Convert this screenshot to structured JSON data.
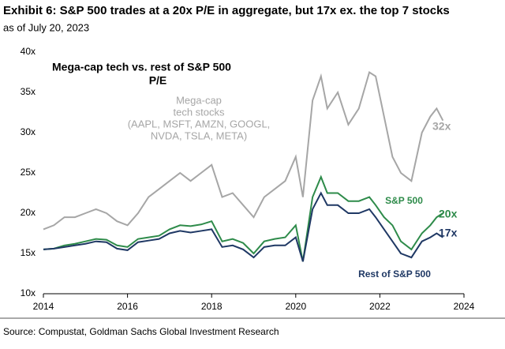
{
  "chart_data": {
    "type": "line",
    "title": "Exhibit 6: S&P 500 trades at a 20x P/E in aggregate, but 17x ex. the top 7 stocks",
    "subtitle": "as of July 20, 2023",
    "inset_title": [
      "Mega-cap tech vs. rest of S&P 500",
      "P/E"
    ],
    "source": "Source: Compustat, Goldman Sachs Global Investment Research",
    "x": [
      2014,
      2014.25,
      2014.5,
      2014.75,
      2015,
      2015.25,
      2015.5,
      2015.75,
      2016,
      2016.25,
      2016.5,
      2016.75,
      2017,
      2017.25,
      2017.5,
      2017.75,
      2018,
      2018.25,
      2018.5,
      2018.75,
      2019,
      2019.25,
      2019.5,
      2019.75,
      2020,
      2020.17,
      2020.4,
      2020.6,
      2020.75,
      2021,
      2021.25,
      2021.5,
      2021.75,
      2021.9,
      2022.1,
      2022.3,
      2022.5,
      2022.75,
      2023,
      2023.2,
      2023.35,
      2023.5
    ],
    "series": [
      {
        "name": [
          "Mega-cap",
          "tech stocks",
          "(AAPL, MSFT, AMZN, GOOGL,",
          "NVDA, TSLA, META)"
        ],
        "color": "#a6a6a6",
        "end_label": "32x",
        "values": [
          18,
          18.5,
          19.5,
          19.5,
          20,
          20.5,
          20,
          19,
          18.5,
          20,
          22,
          23,
          24,
          25,
          24,
          25,
          26,
          22,
          22.5,
          21,
          19.5,
          22,
          23,
          24,
          27,
          22,
          34,
          37,
          33,
          35,
          31,
          33,
          37.5,
          37,
          32,
          27,
          25,
          24,
          30,
          32,
          33,
          31.5
        ]
      },
      {
        "name": [
          "S&P 500"
        ],
        "color": "#2e8b4a",
        "end_label": "20x",
        "values": [
          15.5,
          15.6,
          16,
          16.2,
          16.5,
          16.8,
          16.7,
          16,
          15.8,
          16.8,
          17,
          17.2,
          18,
          18.5,
          18.4,
          18.6,
          19,
          16.5,
          16.8,
          16.3,
          15,
          16.5,
          16.8,
          17,
          18.5,
          14,
          22,
          24.5,
          22.5,
          22.5,
          21.5,
          21.5,
          22,
          21,
          19.5,
          18.5,
          16.5,
          15.5,
          17.5,
          18.5,
          19.5,
          20
        ]
      },
      {
        "name": [
          "Rest of S&P 500"
        ],
        "color": "#1f3864",
        "end_label": "17x",
        "values": [
          15.5,
          15.6,
          15.8,
          16,
          16.2,
          16.5,
          16.4,
          15.6,
          15.4,
          16.4,
          16.6,
          16.8,
          17.5,
          17.8,
          17.6,
          17.8,
          18,
          15.8,
          16,
          15.5,
          14.5,
          15.8,
          16,
          16,
          17,
          14,
          20.5,
          22.5,
          21,
          21,
          20,
          20,
          20.5,
          19.5,
          18,
          16.5,
          15,
          14.5,
          16.5,
          17,
          17.5,
          17
        ]
      }
    ],
    "xlim": [
      2014,
      2024
    ],
    "xticks": [
      2014,
      2016,
      2018,
      2020,
      2022,
      2024
    ],
    "ylim": [
      10,
      40
    ],
    "yticks": [
      {
        "value": 10,
        "label": "10x"
      },
      {
        "value": 15,
        "label": "15x"
      },
      {
        "value": 20,
        "label": "20x"
      },
      {
        "value": 25,
        "label": "25x"
      },
      {
        "value": 30,
        "label": "30x"
      },
      {
        "value": 35,
        "label": "35x"
      },
      {
        "value": 40,
        "label": "40x"
      }
    ]
  }
}
